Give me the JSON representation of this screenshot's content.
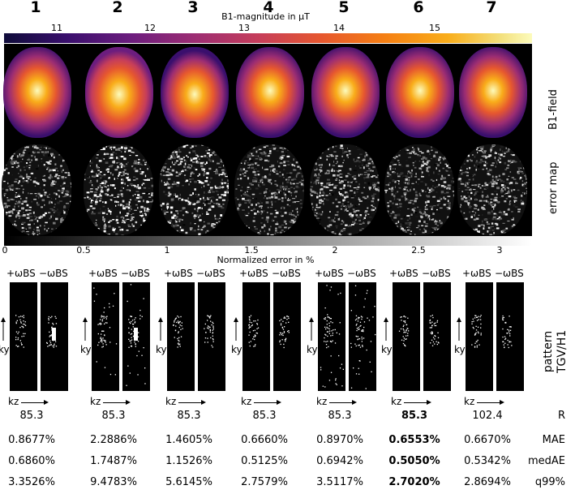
{
  "columns": [
    "1",
    "2",
    "3",
    "4",
    "5",
    "6",
    "7"
  ],
  "colorbar_top": {
    "title": "B1-magnitude in µT",
    "ticks": [
      "11",
      "12",
      "13",
      "14",
      "15"
    ]
  },
  "rows": {
    "b1": "B1-field",
    "err": "error map",
    "pattern": "pattern\nTGV/H1"
  },
  "colorbar_bottom": {
    "title": "Normalized error in %",
    "ticks": [
      "0",
      "0.5",
      "1",
      "1.5",
      "2",
      "2.5",
      "3"
    ]
  },
  "pattern_labels": {
    "plus": "+ωBS",
    "minus": "−ωBS",
    "ky": "ky",
    "kz": "kz"
  },
  "metrics": {
    "labels": [
      "R",
      "MAE",
      "medAE",
      "q99%"
    ],
    "R": [
      "85.3",
      "85.3",
      "85.3",
      "85.3",
      "85.3",
      "85.3",
      "102.4"
    ],
    "MAE": [
      "0.8677%",
      "2.2886%",
      "1.4605%",
      "0.6660%",
      "0.8970%",
      "0.6553%",
      "0.6670%"
    ],
    "medAE": [
      "0.6860%",
      "1.7487%",
      "1.1526%",
      "0.5125%",
      "0.6942%",
      "0.5050%",
      "0.5342%"
    ],
    "q99": [
      "3.3526%",
      "9.4783%",
      "5.6145%",
      "2.7579%",
      "3.5117%",
      "2.7020%",
      "2.8694%"
    ],
    "best_index": 5
  },
  "colors": {
    "hot_low": "#0f0c3a",
    "hot_mid": "#e6572f",
    "hot_high": "#fcfbbc"
  }
}
